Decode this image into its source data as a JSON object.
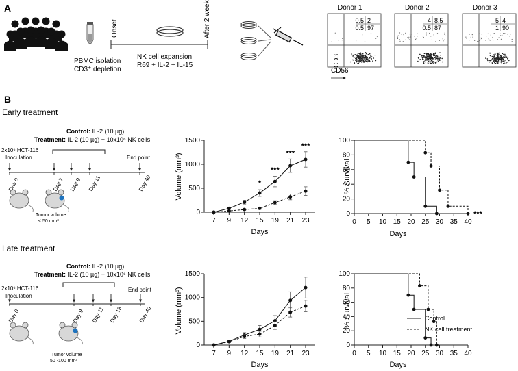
{
  "panels": {
    "a": "A",
    "b": "B"
  },
  "panel_a": {
    "pbmc_line1": "PBMC isolation",
    "pbmc_line2": "CD3⁺ depletion",
    "onset": "Onset",
    "after": "After 2 weeks",
    "nk_line1": "NK cell expansion",
    "nk_line2": "R69 + IL-2 + IL-15",
    "axis_y": "CD3",
    "axis_x": "CD56",
    "donors": [
      {
        "name": "Donor 1",
        "q": [
          "0.5",
          "2",
          "0.5",
          "97"
        ]
      },
      {
        "name": "Donor 2",
        "q": [
          "4",
          "8.5",
          "0.5",
          "87"
        ]
      },
      {
        "name": "Donor 3",
        "q": [
          "5",
          "4",
          "1",
          "90"
        ]
      }
    ]
  },
  "early": {
    "title": "Early treatment",
    "control_label": "Control:",
    "control_text": " IL-2 (10 µg)",
    "treat_label": "Treatment:",
    "treat_text": " IL-2 (10 µg) + 10x10⁶ NK cells",
    "cells_line1": "2x10⁶ HCT-116",
    "cells_line2": "Inoculation",
    "endpoint": "End point",
    "days": [
      "Day 0",
      "Day 7",
      "Day 9",
      "Day 11",
      "Day 40"
    ],
    "tumor_line1": "Tumor volume",
    "tumor_line2": "< 50 mm³"
  },
  "late": {
    "title": "Late treatment",
    "control_label": "Control:",
    "control_text": " IL-2 (10 µg)",
    "treat_label": "Treatment:",
    "treat_text": " IL-2 (10 µg) + 10x10⁶ NK cells",
    "cells_line1": "2x10⁶ HCT-116",
    "cells_line2": "Inoculation",
    "endpoint": "End point",
    "days": [
      "Day 0",
      "Day 9",
      "Day 11",
      "Day 13",
      "Day 40"
    ],
    "tumor_line1": "Tumor volume",
    "tumor_line2": "50 -100 mm³"
  },
  "legend": {
    "solid": "Control",
    "dashed": "NK cell treatment"
  },
  "chart_data": [
    {
      "type": "line",
      "panel": "early-volume",
      "ylabel": "Volume (mm³)",
      "xlabel": "Days",
      "x": [
        7,
        9,
        12,
        15,
        19,
        21,
        23
      ],
      "ylim": [
        0,
        1500
      ],
      "yticks": [
        0,
        500,
        1000,
        1500
      ],
      "series": [
        {
          "style": "solid",
          "values": [
            0,
            80,
            210,
            400,
            640,
            970,
            1100
          ],
          "errors": [
            0,
            20,
            40,
            70,
            110,
            140,
            160
          ]
        },
        {
          "style": "dashed",
          "values": [
            0,
            25,
            55,
            80,
            200,
            320,
            440
          ],
          "errors": [
            0,
            10,
            15,
            20,
            40,
            60,
            90
          ]
        }
      ],
      "annotations": [
        {
          "x": 15,
          "y": 560,
          "text": "*"
        },
        {
          "x": 19,
          "y": 830,
          "text": "***"
        },
        {
          "x": 21,
          "y": 1180,
          "text": "***"
        },
        {
          "x": 23,
          "y": 1330,
          "text": "***"
        }
      ]
    },
    {
      "type": "line",
      "panel": "early-survival",
      "ylabel": "% Survival",
      "xlabel": "Days",
      "xlim": [
        0,
        40
      ],
      "xticks": [
        0,
        5,
        10,
        15,
        20,
        25,
        30,
        35,
        40
      ],
      "ylim": [
        0,
        100
      ],
      "yticks": [
        0,
        20,
        40,
        60,
        80,
        100
      ],
      "series": [
        {
          "style": "solid",
          "step_x": [
            0,
            19,
            19,
            21,
            21,
            25,
            25,
            29,
            29
          ],
          "step_y": [
            100,
            100,
            70,
            70,
            50,
            50,
            10,
            10,
            0
          ],
          "points_x": [
            19,
            21,
            25,
            29
          ],
          "points_y": [
            70,
            50,
            10,
            0
          ]
        },
        {
          "style": "dashed",
          "step_x": [
            0,
            25,
            25,
            27,
            27,
            30,
            30,
            33,
            33,
            40,
            40
          ],
          "step_y": [
            100,
            100,
            83,
            83,
            65,
            65,
            32,
            32,
            10,
            10,
            0
          ],
          "points_x": [
            25,
            27,
            30,
            33,
            40
          ],
          "points_y": [
            83,
            65,
            32,
            10,
            0
          ]
        }
      ],
      "annotations": [
        {
          "x": 40,
          "y": 0,
          "text": "***"
        }
      ]
    },
    {
      "type": "line",
      "panel": "late-volume",
      "ylabel": "Volume (mm³)",
      "xlabel": "Days",
      "x": [
        7,
        9,
        12,
        15,
        19,
        21,
        23
      ],
      "ylim": [
        0,
        1500
      ],
      "yticks": [
        0,
        500,
        1000,
        1500
      ],
      "series": [
        {
          "style": "solid",
          "values": [
            0,
            80,
            210,
            330,
            510,
            940,
            1210
          ],
          "errors": [
            0,
            20,
            50,
            80,
            110,
            180,
            220
          ]
        },
        {
          "style": "dashed",
          "values": [
            0,
            70,
            180,
            230,
            410,
            690,
            820
          ],
          "errors": [
            0,
            20,
            40,
            60,
            80,
            100,
            120
          ]
        }
      ]
    },
    {
      "type": "line",
      "panel": "late-survival",
      "ylabel": "% Survival",
      "xlabel": "Days",
      "xlim": [
        0,
        40
      ],
      "xticks": [
        0,
        5,
        10,
        15,
        20,
        25,
        30,
        35,
        40
      ],
      "ylim": [
        0,
        100
      ],
      "yticks": [
        0,
        20,
        40,
        60,
        80,
        100
      ],
      "series": [
        {
          "style": "solid",
          "step_x": [
            0,
            19,
            19,
            21,
            21,
            25,
            25,
            27,
            27
          ],
          "step_y": [
            100,
            100,
            70,
            70,
            50,
            50,
            10,
            10,
            0
          ],
          "points_x": [
            19,
            21,
            25,
            27
          ],
          "points_y": [
            70,
            50,
            10,
            0
          ]
        },
        {
          "style": "dashed",
          "step_x": [
            0,
            23,
            23,
            26,
            26,
            28,
            28,
            29,
            29
          ],
          "step_y": [
            100,
            100,
            83,
            83,
            50,
            50,
            33,
            33,
            0
          ],
          "points_x": [
            23,
            26,
            28,
            29
          ],
          "points_y": [
            83,
            50,
            33,
            0
          ]
        }
      ]
    }
  ]
}
